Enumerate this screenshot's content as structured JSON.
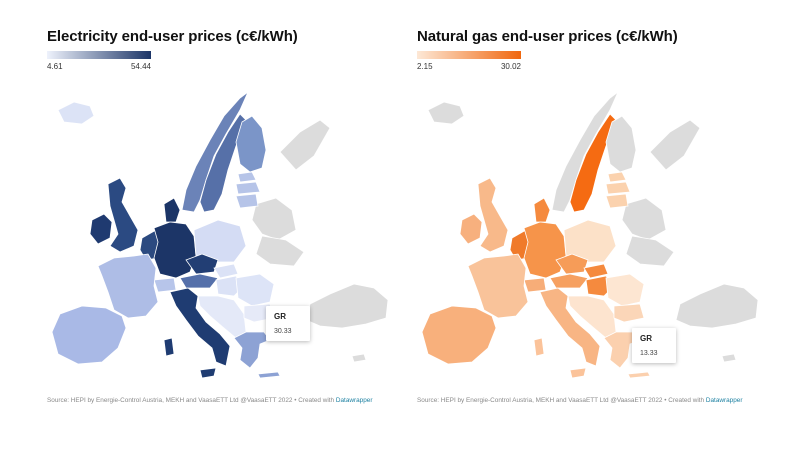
{
  "maps": [
    {
      "title": "Electricity end-user prices (c€/kWh)",
      "legend": {
        "min": "4.61",
        "max": "54.44",
        "color_low": "#eef2fc",
        "color_high": "#1c3567"
      },
      "tooltip": {
        "code": "GR",
        "value": "30.33"
      },
      "source_prefix": "Source: HEPI by Energie-Control Austria, MEKH and VaasaETT Ltd @VaasaETT 2022 • Created with ",
      "source_link": "Datawrapper",
      "colors": {
        "nodata": "#dcdcdc",
        "iceland": "#dce3f6",
        "norway": "#6b83b8",
        "sweden": "#5670a8",
        "finland": "#7b95c8",
        "baltics": "#b6c4e8",
        "uk": "#2b4a82",
        "ireland": "#1f3a70",
        "denmark": "#1c3567",
        "germany": "#1c3567",
        "benelux": "#2c4a80",
        "france": "#aebde6",
        "iberia": "#a9b9e6",
        "poland": "#d4dcf4",
        "czechia": "#223e74",
        "austria": "#5570aa",
        "swiss": "#b7c5ea",
        "italy": "#1f3c72",
        "balkans": "#e4e9f8",
        "hungary": "#dbe2f6",
        "romania": "#dde4f7",
        "bulgaria": "#e6eaf8",
        "greece": "#8da2d4",
        "islands": "#1f3c72"
      }
    },
    {
      "title": "Natural gas end-user prices (c€/kWh)",
      "legend": {
        "min": "2.15",
        "max": "30.02",
        "color_low": "#fde8d6",
        "color_high": "#f0670f"
      },
      "tooltip": {
        "code": "GR",
        "value": "13.33"
      },
      "source_prefix": "Source: HEPI by Energie-Control Austria, MEKH and VaasaETT Ltd @VaasaETT 2022 • Created with ",
      "source_link": "Datawrapper",
      "colors": {
        "nodata": "#dcdcdc",
        "iceland": "#dcdcdc",
        "norway": "#dcdcdc",
        "sweden": "#f56b12",
        "finland": "#dcdcdc",
        "baltics": "#fbd2ae",
        "uk": "#f8b98a",
        "ireland": "#f7b07e",
        "denmark": "#f58a3e",
        "germany": "#f6944a",
        "benelux": "#f07a2a",
        "france": "#f9c39a",
        "iberia": "#f8b07c",
        "poland": "#fce1c8",
        "czechia": "#f69c58",
        "austria": "#f6a060",
        "swiss": "#f7ad78",
        "italy": "#f8b584",
        "balkans": "#fde4cf",
        "hungary": "#f58a3e",
        "romania": "#fde6d2",
        "bulgaria": "#fbd6b8",
        "greece": "#fbd0ae",
        "islands": "#fbc39a"
      }
    }
  ]
}
